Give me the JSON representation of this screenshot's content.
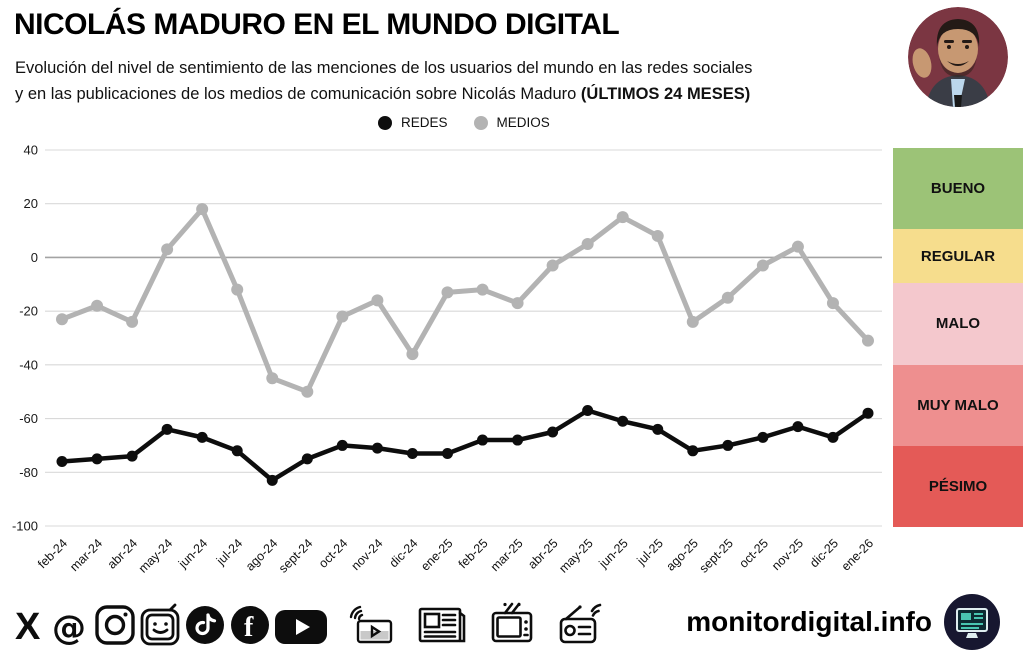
{
  "header": {
    "title": "NICOLÁS MADURO EN EL MUNDO DIGITAL",
    "subtitle_line1": "Evolución del nivel de sentimiento de las menciones de los usuarios del mundo en las redes sociales",
    "subtitle_line2": "y en las publicaciones de los medios de comunicación sobre Nicolás Maduro",
    "subtitle_line2_bold": "(ÚLTIMOS 24 MESES)",
    "avatar": "nicolas-maduro-portrait"
  },
  "chart_data": {
    "type": "line",
    "title": "Evolución del nivel de sentimiento (últimos 24 meses)",
    "categories": [
      "feb-24",
      "mar-24",
      "abr-24",
      "may-24",
      "jun-24",
      "jul-24",
      "ago-24",
      "sept-24",
      "oct-24",
      "nov-24",
      "dic-24",
      "ene-25",
      "feb-25",
      "mar-25",
      "abr-25",
      "may-25",
      "jun-25",
      "jul-25",
      "ago-25",
      "sept-25",
      "oct-25",
      "nov-25",
      "dic-25",
      "ene-26"
    ],
    "series": [
      {
        "name": "REDES",
        "color": "#0d0d0d",
        "values": [
          -76,
          -75,
          -74,
          -64,
          -67,
          -72,
          -83,
          -75,
          -70,
          -71,
          -73,
          -73,
          -68,
          -68,
          -65,
          -57,
          -61,
          -64,
          -72,
          -70,
          -67,
          -63,
          -67,
          -58
        ]
      },
      {
        "name": "MEDIOS",
        "color": "#b3b3b3",
        "values": [
          -23,
          -18,
          -24,
          3,
          18,
          -12,
          -45,
          -50,
          -22,
          -16,
          -36,
          -13,
          -12,
          -17,
          -3,
          5,
          15,
          8,
          -24,
          -15,
          -3,
          4,
          -17,
          -31
        ]
      }
    ],
    "xlabel": "",
    "ylabel": "",
    "ylim": [
      -100,
      40
    ],
    "yticks": [
      40,
      20,
      0,
      -20,
      -40,
      -60,
      -80,
      -100
    ],
    "grid": true,
    "zero_line_color": "#a3a3a3",
    "grid_color": "#d9d9d9",
    "legend_position": "top"
  },
  "scale_panel": {
    "items": [
      {
        "label": "BUENO",
        "color": "#9cc377",
        "range": [
          40,
          10
        ]
      },
      {
        "label": "REGULAR",
        "color": "#f6dd8d",
        "range": [
          10,
          -10
        ]
      },
      {
        "label": "MALO",
        "color": "#f4c8cd",
        "range": [
          -10,
          -40
        ]
      },
      {
        "label": "MUY MALO",
        "color": "#ee8f8f",
        "range": [
          -40,
          -70
        ]
      },
      {
        "label": "PÉSIMO",
        "color": "#e45a57",
        "range": [
          -70,
          -100
        ]
      }
    ]
  },
  "footer": {
    "site": "monitordigital.info",
    "social_icons": [
      "x-icon",
      "threads-icon",
      "instagram-icon",
      "tv-face-icon",
      "tiktok-icon",
      "facebook-icon",
      "youtube-icon"
    ],
    "media_icons": [
      "streaming-icon",
      "newspaper-icon",
      "tv-icon",
      "radio-icon"
    ],
    "brand_logo": "monitor-icon",
    "brand_logo_bg": "#171730"
  }
}
